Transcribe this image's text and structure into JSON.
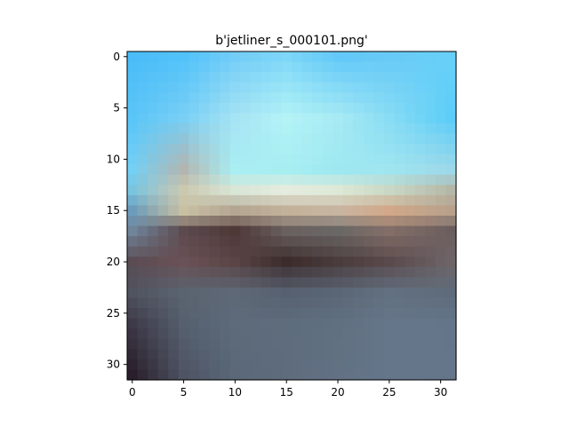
{
  "chart_data": {
    "type": "heatmap",
    "title": "b'jetliner_s_000101.png'",
    "xlabel": "",
    "ylabel": "",
    "grid": false,
    "xlim": [
      -0.5,
      31.5
    ],
    "ylim": [
      31.5,
      -0.5
    ],
    "image_size": [
      32,
      32
    ],
    "xticks": [
      0,
      5,
      10,
      15,
      20,
      25,
      30
    ],
    "yticks": [
      0,
      5,
      10,
      15,
      20,
      25,
      30
    ],
    "xtick_labels": [
      "0",
      "5",
      "10",
      "15",
      "20",
      "25",
      "30"
    ],
    "ytick_labels": [
      "0",
      "5",
      "10",
      "15",
      "20",
      "25",
      "30"
    ],
    "color_keyframes": [
      {
        "row": 0,
        "colors": [
          "#4bbcf8",
          "#52c2fa",
          "#73cdf7",
          "#7ed7f8",
          "#62c9f8",
          "#68caf6",
          "#68d0f8"
        ]
      },
      {
        "row": 6,
        "colors": [
          "#5ac5f8",
          "#79cff4",
          "#a6e3f4",
          "#b3f3f6",
          "#a7eaf4",
          "#88dcf4",
          "#5ccdf8"
        ]
      },
      {
        "row": 11,
        "colors": [
          "#74d0f4",
          "#b3b6b0",
          "#a9eef3",
          "#a7eef1",
          "#9ee8f1",
          "#9fe5f0",
          "#9dd8ea"
        ]
      },
      {
        "row": 13,
        "colors": [
          "#7ac4e0",
          "#cbc8b0",
          "#d8e6d6",
          "#e4ecdf",
          "#dde8d6",
          "#c9d8c6",
          "#b4b7a7"
        ]
      },
      {
        "row": 15,
        "colors": [
          "#6c9cbc",
          "#c8c0a3",
          "#b4a592",
          "#c3b29a",
          "#c8b5a1",
          "#d2a888",
          "#b7a18b"
        ]
      },
      {
        "row": 17,
        "colors": [
          "#70849a",
          "#5c4a4e",
          "#4e3838",
          "#6a6060",
          "#6a6866",
          "#836e68",
          "#6b5e5e"
        ]
      },
      {
        "row": 20,
        "colors": [
          "#5b4c54",
          "#6a5256",
          "#5a4446",
          "#3c2c2c",
          "#4a3c3c",
          "#5a4a4c",
          "#6e6468"
        ]
      },
      {
        "row": 23,
        "colors": [
          "#505460",
          "#5a6470",
          "#5e6876",
          "#566070",
          "#5a6676",
          "#627080",
          "#5e6b7a"
        ]
      },
      {
        "row": 26,
        "colors": [
          "#3e3a48",
          "#56606f",
          "#5d6b7b",
          "#5e6c7c",
          "#607080",
          "#66768a",
          "#64758a"
        ]
      },
      {
        "row": 31,
        "colors": [
          "#2a1e2a",
          "#4e5464",
          "#5a6878",
          "#5e6c7e",
          "#627284",
          "#66768a",
          "#65768a"
        ]
      }
    ],
    "key_columns": [
      0,
      5,
      10,
      15,
      20,
      25,
      31
    ]
  }
}
